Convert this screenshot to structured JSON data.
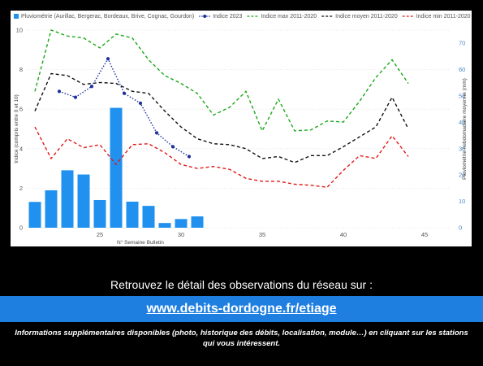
{
  "chart_data": {
    "type": "bar+line",
    "legend": {
      "placement": "top-left",
      "entries": [
        {
          "label": "Pluviométrie (Aurillac, Bergerac, Bordeaux, Brive, Cognac, Gourdon)",
          "color": "#2191f0",
          "style": "bar"
        },
        {
          "label": "Indice 2023",
          "color": "#1c2f9c",
          "style": "dotted-marker"
        },
        {
          "label": "Indice max 2011-2020",
          "color": "#1aa81a",
          "style": "dashed"
        },
        {
          "label": "Indice moyen 2011-2020",
          "color": "#111111",
          "style": "dashed"
        },
        {
          "label": "Indice min 2011-2020",
          "color": "#e01919",
          "style": "dashed"
        }
      ]
    },
    "xlabel": "N° Semaine Bulletin",
    "ylabel_left": "Indice (compris entre 0 et 10)",
    "ylabel_right": "Pluviométrie hebdomadaire moyenne (mm)",
    "xlim": [
      20.5,
      46.5
    ],
    "ylim_left": [
      0,
      10
    ],
    "ylim_right": [
      0,
      75
    ],
    "x_ticks": [
      25,
      30,
      35,
      40,
      45
    ],
    "y_ticks_left": [
      0,
      2,
      4,
      6,
      8,
      10
    ],
    "y_ticks_right": [
      0,
      10,
      20,
      30,
      40,
      50,
      60,
      70
    ],
    "rainfall": {
      "x": [
        21,
        22,
        23,
        24,
        25,
        26,
        27,
        28,
        29,
        30,
        31
      ],
      "values": [
        9.8,
        14.2,
        21.8,
        20.2,
        10.5,
        45.5,
        9.9,
        8.3,
        1.8,
        3.3,
        4.3
      ]
    },
    "series": [
      {
        "name": "Indice max 2011-2020",
        "color": "#1aa81a",
        "dash": "4,3",
        "x": [
          21,
          22,
          23,
          24,
          25,
          26,
          27,
          28,
          29,
          30,
          31,
          32,
          33,
          34,
          35,
          36,
          37,
          38,
          39,
          40,
          41,
          42,
          43,
          44
        ],
        "values": [
          6.9,
          10.0,
          9.7,
          9.6,
          9.1,
          9.8,
          9.6,
          8.5,
          7.7,
          7.3,
          6.8,
          5.7,
          6.1,
          6.9,
          4.9,
          6.5,
          4.9,
          4.95,
          5.4,
          5.35,
          6.4,
          7.6,
          8.5,
          7.3
        ]
      },
      {
        "name": "Indice moyen 2011-2020",
        "color": "#111111",
        "dash": "4,3",
        "x": [
          21,
          22,
          23,
          24,
          25,
          26,
          27,
          28,
          29,
          30,
          31,
          32,
          33,
          34,
          35,
          36,
          37,
          38,
          39,
          40,
          41,
          42,
          43,
          44
        ],
        "values": [
          5.9,
          7.8,
          7.7,
          7.25,
          7.35,
          7.3,
          6.9,
          6.8,
          5.9,
          5.1,
          4.5,
          4.25,
          4.2,
          4.0,
          3.5,
          3.6,
          3.3,
          3.65,
          3.65,
          4.1,
          4.6,
          5.1,
          6.6,
          5.0
        ]
      },
      {
        "name": "Indice min 2011-2020",
        "color": "#e01919",
        "dash": "4,3",
        "x": [
          21,
          22,
          23,
          24,
          25,
          26,
          27,
          28,
          29,
          30,
          31,
          32,
          33,
          34,
          35,
          36,
          37,
          38,
          39,
          40,
          41,
          42,
          43,
          44
        ],
        "values": [
          5.1,
          3.5,
          4.5,
          4.05,
          4.2,
          3.2,
          4.2,
          4.25,
          3.8,
          3.2,
          3.0,
          3.1,
          2.95,
          2.5,
          2.35,
          2.35,
          2.2,
          2.15,
          2.05,
          2.9,
          3.65,
          3.5,
          4.65,
          3.6
        ]
      },
      {
        "name": "Indice 2023",
        "color": "#1c2f9c",
        "dash": "1.5,2",
        "markers": true,
        "x": [
          22.5,
          23.5,
          24.5,
          25.5,
          26.5,
          27.5,
          28.5,
          29.5,
          30.5
        ],
        "values": [
          6.9,
          6.6,
          7.15,
          8.55,
          6.8,
          6.3,
          4.8,
          4.1,
          3.6
        ]
      }
    ]
  },
  "info_text": "Retrouvez le détail des observations du réseau sur :",
  "link_text": "www.debits-dordogne.fr/etiage",
  "footnote": "Informations supplémentaires disponibles (photo, historique des débits, localisation, module…) en cliquant sur les stations qui vous intéressent."
}
